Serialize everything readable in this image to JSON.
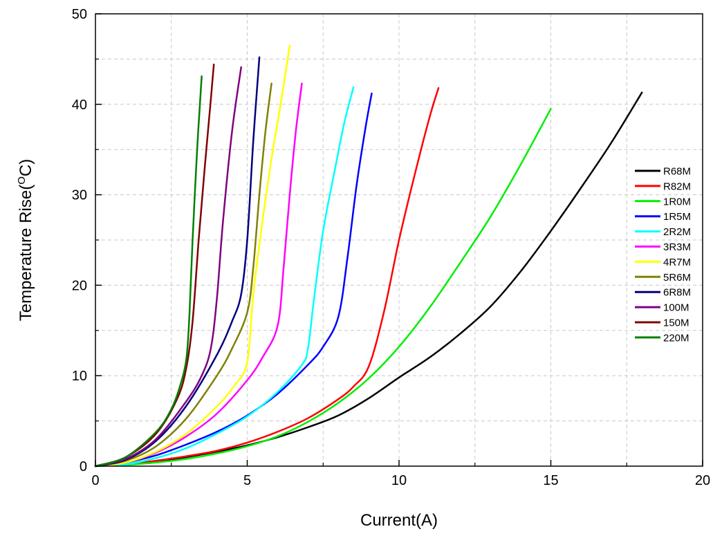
{
  "chart_data": {
    "type": "line",
    "xlabel": "Current(A)",
    "ylabel_main": "Temperature Rise(",
    "ylabel_sup": "O",
    "ylabel_unit": "C)",
    "xlim": [
      0,
      20
    ],
    "ylim": [
      0,
      50
    ],
    "xticks": [
      0,
      5,
      10,
      15,
      20
    ],
    "yticks": [
      0,
      10,
      20,
      30,
      40,
      50
    ],
    "grid": true,
    "legend_position": "right",
    "series": [
      {
        "name": "R68M",
        "color": "#000000",
        "x": [
          0,
          1,
          2,
          3,
          4,
          5,
          6,
          7,
          8,
          9,
          10,
          11,
          12,
          13,
          14,
          15,
          16,
          17,
          18
        ],
        "y": [
          0,
          0.2,
          0.5,
          1.0,
          1.6,
          2.3,
          3.2,
          4.3,
          5.6,
          7.5,
          9.8,
          12.0,
          14.6,
          17.6,
          21.5,
          26.0,
          30.8,
          35.8,
          41.3
        ]
      },
      {
        "name": "R82M",
        "color": "#ff0000",
        "x": [
          0,
          1,
          2,
          3,
          4,
          5,
          6,
          7,
          8,
          8.5,
          9,
          9.5,
          10,
          10.5,
          11,
          11.3
        ],
        "y": [
          0,
          0.2,
          0.6,
          1.1,
          1.7,
          2.6,
          3.8,
          5.3,
          7.4,
          8.8,
          11.0,
          17.0,
          25.0,
          32.0,
          38.5,
          41.8
        ]
      },
      {
        "name": "1R0M",
        "color": "#00ee00",
        "x": [
          0,
          1,
          2,
          3,
          4,
          5,
          6,
          7,
          8,
          9,
          10,
          11,
          12,
          13,
          14,
          15
        ],
        "y": [
          0,
          0.15,
          0.4,
          0.8,
          1.4,
          2.2,
          3.3,
          4.9,
          7.0,
          9.7,
          13.2,
          17.5,
          22.4,
          27.5,
          33.3,
          39.5
        ]
      },
      {
        "name": "1R5M",
        "color": "#0000ff",
        "x": [
          0,
          1,
          2,
          3,
          4,
          5,
          6,
          7,
          7.5,
          8,
          8.3,
          8.6,
          8.9,
          9.1
        ],
        "y": [
          0,
          0.4,
          1.2,
          2.4,
          3.8,
          5.6,
          8.0,
          11.2,
          13.2,
          16.5,
          23.0,
          31.0,
          37.5,
          41.2
        ]
      },
      {
        "name": "2R2M",
        "color": "#00ffff",
        "x": [
          0,
          1,
          2,
          3,
          4,
          5,
          6,
          6.8,
          7.0,
          7.2,
          7.5,
          7.9,
          8.2,
          8.5
        ],
        "y": [
          0,
          0.2,
          0.9,
          2.0,
          3.6,
          5.5,
          8.2,
          11.2,
          13.0,
          18.5,
          26.0,
          33.0,
          38.0,
          41.9
        ]
      },
      {
        "name": "3R3M",
        "color": "#ff00ff",
        "x": [
          0,
          1,
          2,
          3,
          4,
          5,
          5.5,
          6.0,
          6.2,
          6.4,
          6.6,
          6.8
        ],
        "y": [
          0,
          0.4,
          1.5,
          3.3,
          5.8,
          9.5,
          12.0,
          15.5,
          22.0,
          30.0,
          37.0,
          42.3
        ]
      },
      {
        "name": "4R7M",
        "color": "#ffff00",
        "x": [
          0,
          1,
          2,
          3,
          4,
          4.6,
          5.0,
          5.2,
          5.5,
          5.8,
          6.1,
          6.4
        ],
        "y": [
          0,
          0.4,
          1.6,
          3.6,
          6.6,
          9.0,
          11.5,
          19.0,
          27.0,
          34.0,
          40.0,
          46.5
        ]
      },
      {
        "name": "5R6M",
        "color": "#808000",
        "x": [
          0,
          1,
          2,
          3,
          4,
          4.5,
          5.0,
          5.2,
          5.4,
          5.6,
          5.8
        ],
        "y": [
          0,
          0.6,
          2.2,
          5.3,
          10.0,
          13.0,
          17.0,
          22.0,
          30.0,
          37.0,
          42.3
        ]
      },
      {
        "name": "6R8M",
        "color": "#000080",
        "x": [
          0,
          1,
          2,
          3,
          4,
          4.5,
          4.8,
          5.0,
          5.2,
          5.4
        ],
        "y": [
          0,
          0.7,
          2.8,
          6.7,
          12.3,
          16.0,
          19.0,
          25.0,
          36.0,
          45.2
        ]
      },
      {
        "name": "100M",
        "color": "#800080",
        "x": [
          0,
          1,
          2,
          3,
          3.5,
          3.8,
          4.0,
          4.2,
          4.5,
          4.8
        ],
        "y": [
          0,
          0.8,
          3.0,
          7.2,
          10.0,
          13.0,
          18.5,
          27.0,
          37.0,
          44.1
        ]
      },
      {
        "name": "150M",
        "color": "#800000",
        "x": [
          0,
          1,
          2,
          2.7,
          3.0,
          3.2,
          3.4,
          3.6,
          3.8,
          3.9
        ],
        "y": [
          0,
          1.0,
          3.6,
          7.5,
          11.0,
          16.0,
          25.0,
          33.0,
          40.5,
          44.4
        ]
      },
      {
        "name": "220M",
        "color": "#008000",
        "x": [
          0,
          1,
          2,
          2.5,
          2.8,
          3.0,
          3.1,
          3.2,
          3.35,
          3.5
        ],
        "y": [
          0,
          1.0,
          3.8,
          6.3,
          9.0,
          12.0,
          17.0,
          25.0,
          35.0,
          43.1
        ]
      }
    ]
  }
}
